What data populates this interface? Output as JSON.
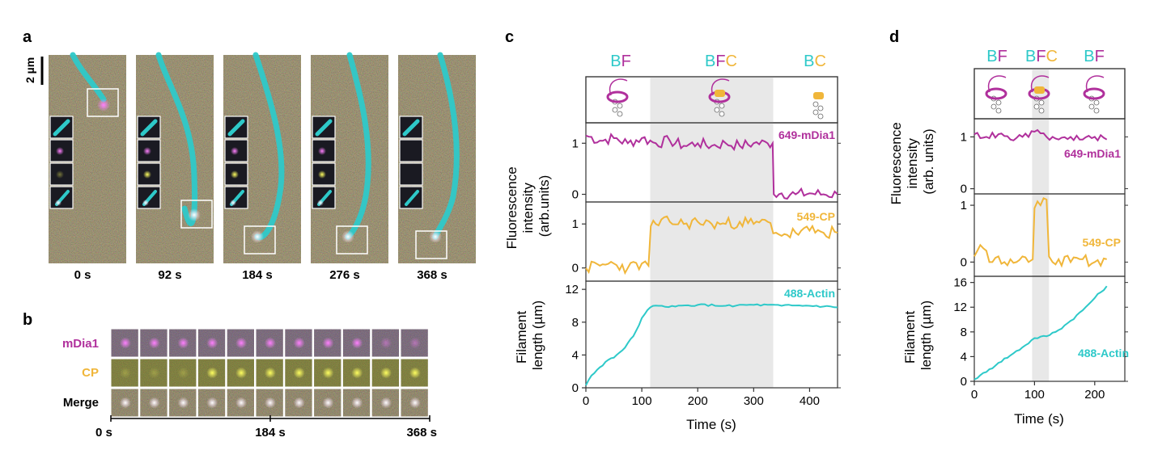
{
  "colors": {
    "cyan": "#2ec9c9",
    "magenta": "#b0309c",
    "yellow": "#f0b63a",
    "shade": "#e8e8e8",
    "micro_bg": "#3a3020",
    "spot_magenta": "#e040e0",
    "spot_yellow": "#e8d820"
  },
  "panel_a": {
    "label": "a",
    "scale_bar": "2 µm",
    "times": [
      "0 s",
      "92 s",
      "184 s",
      "276 s",
      "368 s"
    ]
  },
  "panel_b": {
    "label": "b",
    "rows": [
      "mDia1",
      "CP",
      "Merge"
    ],
    "axis_start": "0 s",
    "axis_mid": "184 s",
    "axis_end": "368 s",
    "n_frames": 11
  },
  "panel_c": {
    "label": "c",
    "states": [
      {
        "parts": [
          {
            "t": "B",
            "c": "cyan"
          },
          {
            "t": "F",
            "c": "magenta"
          }
        ]
      },
      {
        "parts": [
          {
            "t": "B",
            "c": "cyan"
          },
          {
            "t": "F",
            "c": "magenta"
          },
          {
            "t": "C",
            "c": "yellow"
          }
        ]
      },
      {
        "parts": [
          {
            "t": "B",
            "c": "cyan"
          },
          {
            "t": "C",
            "c": "yellow"
          }
        ]
      }
    ],
    "ylabel_top": [
      "Fluorescence",
      "intensity",
      "(arb.units)"
    ],
    "ylabel_bottom": [
      "Filament",
      "length (µm)"
    ],
    "xlabel": "Time (s)",
    "shade_range": [
      115,
      335
    ]
  },
  "panel_d": {
    "label": "d",
    "states": [
      {
        "parts": [
          {
            "t": "B",
            "c": "cyan"
          },
          {
            "t": "F",
            "c": "magenta"
          }
        ]
      },
      {
        "parts": [
          {
            "t": "B",
            "c": "cyan"
          },
          {
            "t": "F",
            "c": "magenta"
          },
          {
            "t": "C",
            "c": "yellow"
          }
        ]
      },
      {
        "parts": [
          {
            "t": "B",
            "c": "cyan"
          },
          {
            "t": "F",
            "c": "magenta"
          }
        ]
      }
    ],
    "ylabel_top": [
      "Fluorescence",
      "intensity",
      "(arb. units)"
    ],
    "ylabel_bottom": [
      "Filament",
      "length (µm)"
    ],
    "xlabel": "Time (s)",
    "shade_range": [
      96,
      124
    ]
  },
  "chart_data": [
    {
      "type": "line",
      "title": "Panel c: 649-mDia1 intensity",
      "series_label": "649-mDia1",
      "ylabel": "Fluorescence intensity (arb.units)",
      "x": [
        0,
        25,
        50,
        75,
        100,
        125,
        150,
        175,
        200,
        225,
        250,
        275,
        300,
        325,
        334,
        336,
        350,
        375,
        400,
        425,
        450
      ],
      "y": [
        1.15,
        1.05,
        1.1,
        1.0,
        1.1,
        1.0,
        1.05,
        0.95,
        1.0,
        0.95,
        1.0,
        0.95,
        1.0,
        1.0,
        1.0,
        0.0,
        0.02,
        0.0,
        0.02,
        0.0,
        0.0
      ],
      "xlim": [
        0,
        450
      ],
      "ylim": [
        -0.15,
        1.4
      ],
      "yticks": [
        0,
        1
      ]
    },
    {
      "type": "line",
      "title": "Panel c: 549-CP intensity",
      "series_label": "549-CP",
      "x": [
        0,
        25,
        50,
        75,
        100,
        112,
        116,
        125,
        150,
        175,
        200,
        225,
        250,
        275,
        300,
        325,
        340,
        360,
        375,
        400,
        425,
        450
      ],
      "y": [
        0.0,
        0.05,
        0.1,
        0.0,
        0.1,
        0.05,
        0.95,
        1.0,
        1.05,
        1.0,
        1.05,
        1.0,
        1.0,
        1.05,
        1.0,
        1.05,
        0.8,
        0.75,
        0.8,
        0.85,
        0.8,
        0.8
      ],
      "xlim": [
        0,
        450
      ],
      "ylim": [
        -0.3,
        1.5
      ],
      "yticks": [
        0,
        1
      ]
    },
    {
      "type": "line",
      "title": "Panel c: 488-Actin filament length",
      "series_label": "488-Actin",
      "xlabel": "Time (s)",
      "ylabel": "Filament length (µm)",
      "x": [
        0,
        10,
        25,
        40,
        55,
        70,
        85,
        100,
        115,
        130,
        160,
        200,
        250,
        300,
        350,
        400,
        450
      ],
      "y": [
        0.3,
        1.5,
        2.5,
        3.4,
        4.0,
        4.9,
        6.3,
        8.5,
        9.8,
        10.0,
        9.9,
        10.1,
        10.0,
        10.1,
        10.0,
        10.0,
        9.8
      ],
      "xlim": [
        0,
        450
      ],
      "ylim": [
        0,
        13
      ],
      "xticks": [
        0,
        100,
        200,
        300,
        400
      ],
      "yticks": [
        0,
        4,
        8,
        12
      ]
    },
    {
      "type": "line",
      "title": "Panel d: 649-mDia1 intensity",
      "series_label": "649-mDia1",
      "ylabel": "Fluorescence intensity (arb. units)",
      "x": [
        0,
        20,
        40,
        60,
        80,
        100,
        120,
        140,
        160,
        180,
        200,
        220
      ],
      "y": [
        1.05,
        1.0,
        1.05,
        0.95,
        1.0,
        1.1,
        1.0,
        0.95,
        1.0,
        0.95,
        1.0,
        0.95
      ],
      "xlim": [
        0,
        250
      ],
      "ylim": [
        -0.1,
        1.35
      ],
      "yticks": [
        0,
        1
      ]
    },
    {
      "type": "line",
      "title": "Panel d: 549-CP intensity",
      "series_label": "549-CP",
      "x": [
        0,
        10,
        20,
        30,
        40,
        50,
        60,
        70,
        80,
        90,
        97,
        100,
        110,
        120,
        124,
        130,
        140,
        160,
        180,
        200,
        220
      ],
      "y": [
        0.1,
        0.3,
        0.2,
        0.0,
        0.1,
        0.0,
        0.05,
        0.0,
        0.1,
        0.0,
        0.05,
        0.95,
        1.0,
        1.1,
        0.1,
        0.0,
        0.05,
        0.0,
        0.05,
        0.0,
        0.05
      ],
      "xlim": [
        0,
        250
      ],
      "ylim": [
        -0.25,
        1.2
      ],
      "yticks": [
        0,
        1
      ]
    },
    {
      "type": "line",
      "title": "Panel d: 488-Actin filament length",
      "series_label": "488-Actin",
      "xlabel": "Time (s)",
      "ylabel": "Filament length (µm)",
      "x": [
        0,
        10,
        20,
        40,
        60,
        80,
        100,
        120,
        140,
        160,
        180,
        200,
        220
      ],
      "y": [
        0.3,
        1.0,
        1.5,
        3.0,
        4.2,
        5.5,
        7.0,
        7.3,
        8.3,
        9.8,
        11.5,
        13.5,
        15.4
      ],
      "xlim": [
        0,
        250
      ],
      "ylim": [
        0,
        17
      ],
      "xticks": [
        0,
        100,
        200
      ],
      "yticks": [
        0,
        4,
        8,
        12,
        16
      ]
    }
  ]
}
